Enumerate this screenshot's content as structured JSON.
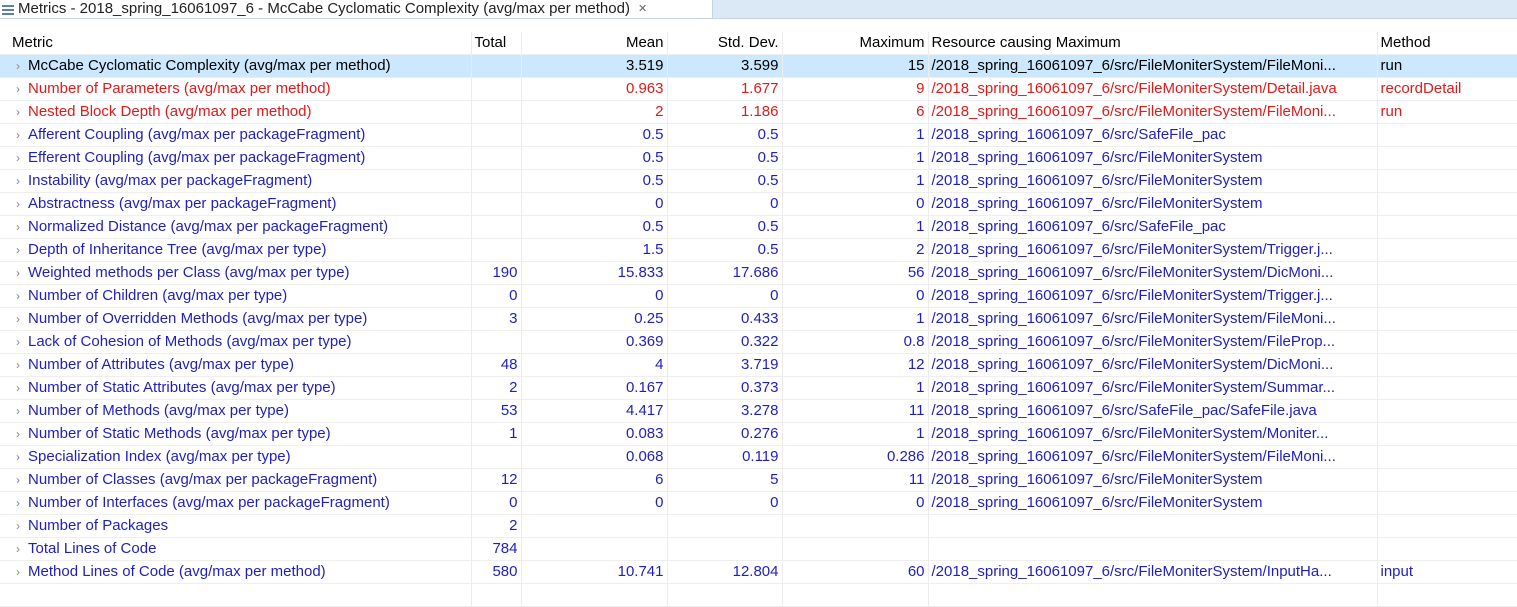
{
  "tab": {
    "title": "Metrics - 2018_spring_16061097_6 - McCabe Cyclomatic Complexity (avg/max per method)",
    "icon": "metrics-view-icon",
    "close_icon": "close-icon",
    "close_glyph": "✕"
  },
  "columns": {
    "metric": "Metric",
    "total": "Total",
    "mean": "Mean",
    "std_dev": "Std. Dev.",
    "maximum": "Maximum",
    "resource": "Resource causing Maximum",
    "method": "Method"
  },
  "colors": {
    "normal": "#1f1fbf",
    "warning": "#e01919",
    "selected_bg": "#cce8ff"
  },
  "rows": [
    {
      "metric": "McCabe Cyclomatic Complexity (avg/max per method)",
      "total": "",
      "mean": "3.519",
      "std_dev": "3.599",
      "maximum": "15",
      "resource": "/2018_spring_16061097_6/src/FileMoniterSystem/FileMoni...",
      "method": "run",
      "state": "selected"
    },
    {
      "metric": "Number of Parameters (avg/max per method)",
      "total": "",
      "mean": "0.963",
      "std_dev": "1.677",
      "maximum": "9",
      "resource": "/2018_spring_16061097_6/src/FileMoniterSystem/Detail.java",
      "method": "recordDetail",
      "state": "warning"
    },
    {
      "metric": "Nested Block Depth (avg/max per method)",
      "total": "",
      "mean": "2",
      "std_dev": "1.186",
      "maximum": "6",
      "resource": "/2018_spring_16061097_6/src/FileMoniterSystem/FileMoni...",
      "method": "run",
      "state": "warning"
    },
    {
      "metric": "Afferent Coupling (avg/max per packageFragment)",
      "total": "",
      "mean": "0.5",
      "std_dev": "0.5",
      "maximum": "1",
      "resource": "/2018_spring_16061097_6/src/SafeFile_pac",
      "method": "",
      "state": "normal"
    },
    {
      "metric": "Efferent Coupling (avg/max per packageFragment)",
      "total": "",
      "mean": "0.5",
      "std_dev": "0.5",
      "maximum": "1",
      "resource": "/2018_spring_16061097_6/src/FileMoniterSystem",
      "method": "",
      "state": "normal"
    },
    {
      "metric": "Instability (avg/max per packageFragment)",
      "total": "",
      "mean": "0.5",
      "std_dev": "0.5",
      "maximum": "1",
      "resource": "/2018_spring_16061097_6/src/FileMoniterSystem",
      "method": "",
      "state": "normal"
    },
    {
      "metric": "Abstractness (avg/max per packageFragment)",
      "total": "",
      "mean": "0",
      "std_dev": "0",
      "maximum": "0",
      "resource": "/2018_spring_16061097_6/src/FileMoniterSystem",
      "method": "",
      "state": "normal"
    },
    {
      "metric": "Normalized Distance (avg/max per packageFragment)",
      "total": "",
      "mean": "0.5",
      "std_dev": "0.5",
      "maximum": "1",
      "resource": "/2018_spring_16061097_6/src/SafeFile_pac",
      "method": "",
      "state": "normal"
    },
    {
      "metric": "Depth of Inheritance Tree (avg/max per type)",
      "total": "",
      "mean": "1.5",
      "std_dev": "0.5",
      "maximum": "2",
      "resource": "/2018_spring_16061097_6/src/FileMoniterSystem/Trigger.j...",
      "method": "",
      "state": "normal"
    },
    {
      "metric": "Weighted methods per Class (avg/max per type)",
      "total": "190",
      "mean": "15.833",
      "std_dev": "17.686",
      "maximum": "56",
      "resource": "/2018_spring_16061097_6/src/FileMoniterSystem/DicMoni...",
      "method": "",
      "state": "normal"
    },
    {
      "metric": "Number of Children (avg/max per type)",
      "total": "0",
      "mean": "0",
      "std_dev": "0",
      "maximum": "0",
      "resource": "/2018_spring_16061097_6/src/FileMoniterSystem/Trigger.j...",
      "method": "",
      "state": "normal"
    },
    {
      "metric": "Number of Overridden Methods (avg/max per type)",
      "total": "3",
      "mean": "0.25",
      "std_dev": "0.433",
      "maximum": "1",
      "resource": "/2018_spring_16061097_6/src/FileMoniterSystem/FileMoni...",
      "method": "",
      "state": "normal"
    },
    {
      "metric": "Lack of Cohesion of Methods (avg/max per type)",
      "total": "",
      "mean": "0.369",
      "std_dev": "0.322",
      "maximum": "0.8",
      "resource": "/2018_spring_16061097_6/src/FileMoniterSystem/FileProp...",
      "method": "",
      "state": "normal"
    },
    {
      "metric": "Number of Attributes (avg/max per type)",
      "total": "48",
      "mean": "4",
      "std_dev": "3.719",
      "maximum": "12",
      "resource": "/2018_spring_16061097_6/src/FileMoniterSystem/DicMoni...",
      "method": "",
      "state": "normal"
    },
    {
      "metric": "Number of Static Attributes (avg/max per type)",
      "total": "2",
      "mean": "0.167",
      "std_dev": "0.373",
      "maximum": "1",
      "resource": "/2018_spring_16061097_6/src/FileMoniterSystem/Summar...",
      "method": "",
      "state": "normal"
    },
    {
      "metric": "Number of Methods (avg/max per type)",
      "total": "53",
      "mean": "4.417",
      "std_dev": "3.278",
      "maximum": "11",
      "resource": "/2018_spring_16061097_6/src/SafeFile_pac/SafeFile.java",
      "method": "",
      "state": "normal"
    },
    {
      "metric": "Number of Static Methods (avg/max per type)",
      "total": "1",
      "mean": "0.083",
      "std_dev": "0.276",
      "maximum": "1",
      "resource": "/2018_spring_16061097_6/src/FileMoniterSystem/Moniter...",
      "method": "",
      "state": "normal"
    },
    {
      "metric": "Specialization Index (avg/max per type)",
      "total": "",
      "mean": "0.068",
      "std_dev": "0.119",
      "maximum": "0.286",
      "resource": "/2018_spring_16061097_6/src/FileMoniterSystem/FileMoni...",
      "method": "",
      "state": "normal"
    },
    {
      "metric": "Number of Classes (avg/max per packageFragment)",
      "total": "12",
      "mean": "6",
      "std_dev": "5",
      "maximum": "11",
      "resource": "/2018_spring_16061097_6/src/FileMoniterSystem",
      "method": "",
      "state": "normal"
    },
    {
      "metric": "Number of Interfaces (avg/max per packageFragment)",
      "total": "0",
      "mean": "0",
      "std_dev": "0",
      "maximum": "0",
      "resource": "/2018_spring_16061097_6/src/FileMoniterSystem",
      "method": "",
      "state": "normal"
    },
    {
      "metric": "Number of Packages",
      "total": "2",
      "mean": "",
      "std_dev": "",
      "maximum": "",
      "resource": "",
      "method": "",
      "state": "normal"
    },
    {
      "metric": "Total Lines of Code",
      "total": "784",
      "mean": "",
      "std_dev": "",
      "maximum": "",
      "resource": "",
      "method": "",
      "state": "normal"
    },
    {
      "metric": "Method Lines of Code (avg/max per method)",
      "total": "580",
      "mean": "10.741",
      "std_dev": "12.804",
      "maximum": "60",
      "resource": "/2018_spring_16061097_6/src/FileMoniterSystem/InputHa...",
      "method": "input",
      "state": "normal"
    }
  ],
  "expand_icon": "chevron-right-icon",
  "expand_glyph": "›"
}
